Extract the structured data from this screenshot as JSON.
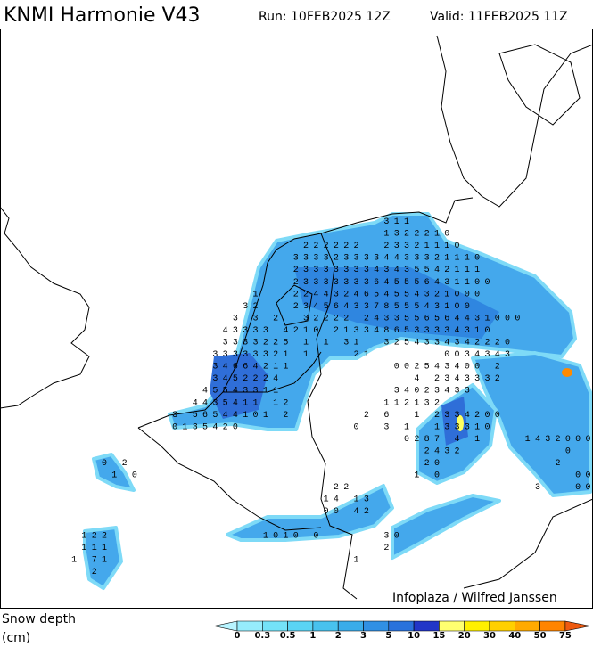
{
  "header": {
    "title": "KNMI Harmonie V43",
    "run": "Run: 10FEB2025 12Z",
    "valid": "Valid: 11FEB2025 11Z"
  },
  "map": {
    "credit": "Infoplaza / Wilfred Janssen",
    "grid_rows": [
      "                                      311",
      "                                      1322210",
      "                              222222  23321110",
      "                             3333233334433321110",
      "                             2333333343435542111",
      "                             23333333645556431100",
      "                         1   2244324654554321000",
      "                        32   234564337855543100",
      "                       3 3 2  32222 2433556564431000",
      "                      43333 4210 2133486533334310",
      "                      3333225 1 1 31  3254334342220",
      "                     33333321 1    21       0034343",
      "                     34664211          002543400 2",
      "                     3452224             4 2343332",
      "                    45543311           34023433",
      "                   4435411 12         112132",
      "                 3 56544101 2       2 6  1 2334200",
      "                 0135420           0  3 1  133310",
      "                                        0287 4 1    1432000",
      "                                          2432          0   0",
      "          0 2                             20           2",
      "           1 0                           1 0             00",
      "                                 22                  3   00",
      "                                14 13",
      "                                00 42",
      null,
      "        122               1010 0      30",
      "        111                           2",
      "       1 71                        1",
      "         2"
    ]
  },
  "legend": {
    "title": "Snow depth",
    "unit": "(cm)",
    "labels": [
      "0",
      "0.3",
      "0.5",
      "1",
      "2",
      "3",
      "5",
      "10",
      "15",
      "20",
      "30",
      "40",
      "50",
      "75"
    ],
    "colors": [
      "#b8f4ff",
      "#96ecfc",
      "#74e2f8",
      "#5ad4f4",
      "#48c2ee",
      "#3aacea",
      "#3090e4",
      "#2a72dc",
      "#2236c8",
      "#ffff70",
      "#fff000",
      "#ffd000",
      "#ffaa00",
      "#ff8400",
      "#ee5a10"
    ]
  }
}
